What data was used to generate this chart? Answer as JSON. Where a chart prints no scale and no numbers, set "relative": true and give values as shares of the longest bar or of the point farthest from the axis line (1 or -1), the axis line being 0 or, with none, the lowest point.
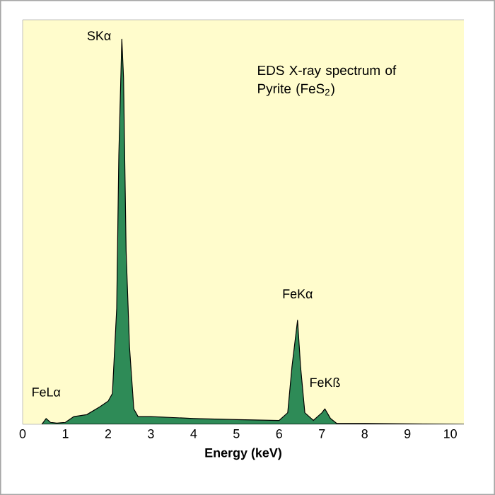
{
  "chart_data": {
    "type": "area",
    "title": "EDS X-ray spectrum of Pyrite (FeS$_{2}$)",
    "xlabel": "Energy (keV)",
    "relative": true,
    "color": "#2e8b57",
    "xlim": [
      0,
      10.32
    ],
    "xticks": [
      0,
      1,
      2,
      3,
      4,
      5,
      6,
      7,
      8,
      9,
      10
    ],
    "x": [
      0.45,
      0.55,
      0.65,
      0.8,
      1.0,
      1.2,
      1.5,
      1.8,
      2.0,
      2.1,
      2.2,
      2.25,
      2.32,
      2.36,
      2.42,
      2.5,
      2.6,
      2.7,
      3.0,
      4.0,
      5.0,
      6.0,
      6.2,
      6.3,
      6.43,
      6.5,
      6.6,
      6.8,
      7.0,
      7.07,
      7.2,
      7.35,
      8.0,
      10.32
    ],
    "values": [
      0,
      0.015,
      0.005,
      0.003,
      0.005,
      0.02,
      0.025,
      0.045,
      0.06,
      0.08,
      0.3,
      0.7,
      1.0,
      0.9,
      0.45,
      0.2,
      0.04,
      0.02,
      0.02,
      0.015,
      0.012,
      0.01,
      0.03,
      0.15,
      0.27,
      0.15,
      0.03,
      0.01,
      0.03,
      0.04,
      0.015,
      0.002,
      0.002,
      0
    ],
    "annotations": [
      {
        "text": "SKα",
        "x": 2.32,
        "y": 1.0
      },
      {
        "text": "FeKα",
        "x": 6.43,
        "y": 0.27
      },
      {
        "text": "FeKß",
        "x": 7.07,
        "y": 0.04
      },
      {
        "text": "FeLα",
        "x": 0.55,
        "y": 0.015
      }
    ]
  }
}
